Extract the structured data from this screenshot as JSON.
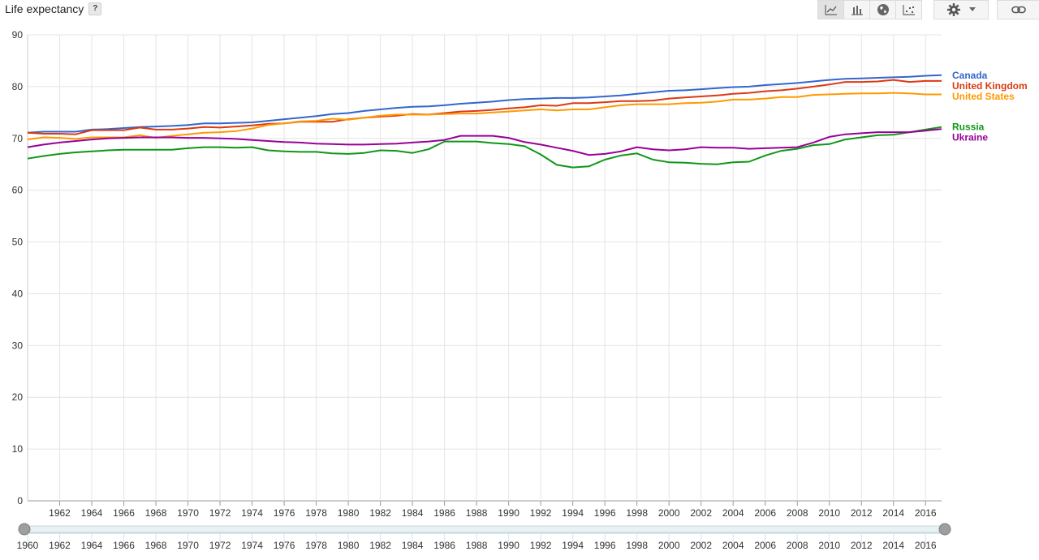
{
  "header": {
    "title": "Life expectancy",
    "help_label": "?"
  },
  "toolbar": {
    "icons": [
      "line-chart-icon",
      "bar-chart-icon",
      "globe-icon",
      "scatter-icon"
    ],
    "active": "line-chart-icon",
    "settings_icon": "gear-icon",
    "link_icon": "link-icon"
  },
  "chart_data": {
    "type": "line",
    "title": "Life expectancy",
    "xlabel": "",
    "ylabel": "",
    "x_range": [
      1960,
      2017
    ],
    "ylim": [
      0,
      90
    ],
    "y_ticks": [
      0,
      10,
      20,
      30,
      40,
      50,
      60,
      70,
      80,
      90
    ],
    "x_ticks": [
      1962,
      1964,
      1966,
      1968,
      1970,
      1972,
      1974,
      1976,
      1978,
      1980,
      1982,
      1984,
      1986,
      1988,
      1990,
      1992,
      1994,
      1996,
      1998,
      2000,
      2002,
      2004,
      2006,
      2008,
      2010,
      2012,
      2014,
      2016
    ],
    "x_years": [
      1960,
      1961,
      1962,
      1963,
      1964,
      1965,
      1966,
      1967,
      1968,
      1969,
      1970,
      1971,
      1972,
      1973,
      1974,
      1975,
      1976,
      1977,
      1978,
      1979,
      1980,
      1981,
      1982,
      1983,
      1984,
      1985,
      1986,
      1987,
      1988,
      1989,
      1990,
      1991,
      1992,
      1993,
      1994,
      1995,
      1996,
      1997,
      1998,
      1999,
      2000,
      2001,
      2002,
      2003,
      2004,
      2005,
      2006,
      2007,
      2008,
      2009,
      2010,
      2011,
      2012,
      2013,
      2014,
      2015,
      2016,
      2017
    ],
    "grid": true,
    "legend_position": "right",
    "series": [
      {
        "name": "Canada",
        "color": "#3366cc",
        "values": [
          71.1,
          71.3,
          71.3,
          71.3,
          71.7,
          71.8,
          72.0,
          72.2,
          72.3,
          72.4,
          72.6,
          72.9,
          72.9,
          73.0,
          73.1,
          73.4,
          73.7,
          74.0,
          74.3,
          74.7,
          74.9,
          75.3,
          75.6,
          75.9,
          76.1,
          76.2,
          76.4,
          76.7,
          76.9,
          77.1,
          77.4,
          77.6,
          77.7,
          77.8,
          77.8,
          77.9,
          78.1,
          78.3,
          78.6,
          78.9,
          79.2,
          79.3,
          79.5,
          79.7,
          79.9,
          80.0,
          80.3,
          80.5,
          80.7,
          81.0,
          81.3,
          81.5,
          81.6,
          81.7,
          81.8,
          81.9,
          82.1,
          82.2
        ]
      },
      {
        "name": "United Kingdom",
        "color": "#dc3912",
        "values": [
          71.1,
          70.9,
          70.9,
          70.8,
          71.6,
          71.6,
          71.6,
          72.1,
          71.7,
          71.7,
          71.9,
          72.2,
          72.1,
          72.3,
          72.5,
          72.8,
          72.9,
          73.2,
          73.2,
          73.2,
          73.7,
          74.0,
          74.2,
          74.4,
          74.7,
          74.6,
          74.9,
          75.2,
          75.3,
          75.5,
          75.8,
          76.0,
          76.4,
          76.3,
          76.8,
          76.8,
          77.0,
          77.2,
          77.2,
          77.3,
          77.7,
          77.9,
          78.1,
          78.3,
          78.6,
          78.8,
          79.1,
          79.3,
          79.6,
          80.0,
          80.4,
          80.9,
          80.9,
          81.0,
          81.3,
          80.9,
          81.1,
          81.1
        ]
      },
      {
        "name": "United States",
        "color": "#ff9900",
        "values": [
          69.8,
          70.2,
          70.1,
          69.9,
          70.2,
          70.2,
          70.2,
          70.6,
          70.1,
          70.5,
          70.8,
          71.1,
          71.2,
          71.4,
          71.9,
          72.6,
          72.9,
          73.3,
          73.4,
          73.8,
          73.6,
          74.0,
          74.4,
          74.6,
          74.6,
          74.6,
          74.7,
          74.8,
          74.8,
          75.0,
          75.2,
          75.4,
          75.6,
          75.4,
          75.6,
          75.6,
          76.0,
          76.4,
          76.6,
          76.6,
          76.6,
          76.8,
          76.9,
          77.1,
          77.5,
          77.5,
          77.7,
          78.0,
          78.0,
          78.4,
          78.5,
          78.6,
          78.7,
          78.7,
          78.8,
          78.7,
          78.5,
          78.5
        ]
      },
      {
        "name": "Russia",
        "color": "#109618",
        "values": [
          66.1,
          66.6,
          67.0,
          67.3,
          67.5,
          67.7,
          67.8,
          67.8,
          67.8,
          67.8,
          68.1,
          68.3,
          68.3,
          68.2,
          68.3,
          67.7,
          67.5,
          67.4,
          67.4,
          67.1,
          67.0,
          67.2,
          67.7,
          67.6,
          67.2,
          67.9,
          69.4,
          69.4,
          69.4,
          69.1,
          68.9,
          68.5,
          66.9,
          64.9,
          64.4,
          64.6,
          65.9,
          66.7,
          67.1,
          65.9,
          65.4,
          65.3,
          65.1,
          65.0,
          65.4,
          65.5,
          66.7,
          67.6,
          68.0,
          68.7,
          68.9,
          69.8,
          70.2,
          70.6,
          70.7,
          71.2,
          71.7,
          72.2
        ]
      },
      {
        "name": "Ukraine",
        "color": "#990099",
        "values": [
          68.3,
          68.8,
          69.2,
          69.5,
          69.8,
          70.0,
          70.1,
          70.2,
          70.2,
          70.2,
          70.1,
          70.1,
          70.0,
          69.9,
          69.7,
          69.5,
          69.3,
          69.2,
          69.0,
          68.9,
          68.8,
          68.8,
          68.9,
          69.0,
          69.2,
          69.4,
          69.7,
          70.5,
          70.5,
          70.5,
          70.1,
          69.3,
          68.8,
          68.2,
          67.6,
          66.8,
          67.0,
          67.5,
          68.3,
          67.9,
          67.7,
          67.9,
          68.3,
          68.2,
          68.2,
          68.0,
          68.1,
          68.2,
          68.3,
          69.2,
          70.3,
          70.8,
          71.0,
          71.2,
          71.2,
          71.2,
          71.5,
          71.8
        ]
      }
    ]
  }
}
